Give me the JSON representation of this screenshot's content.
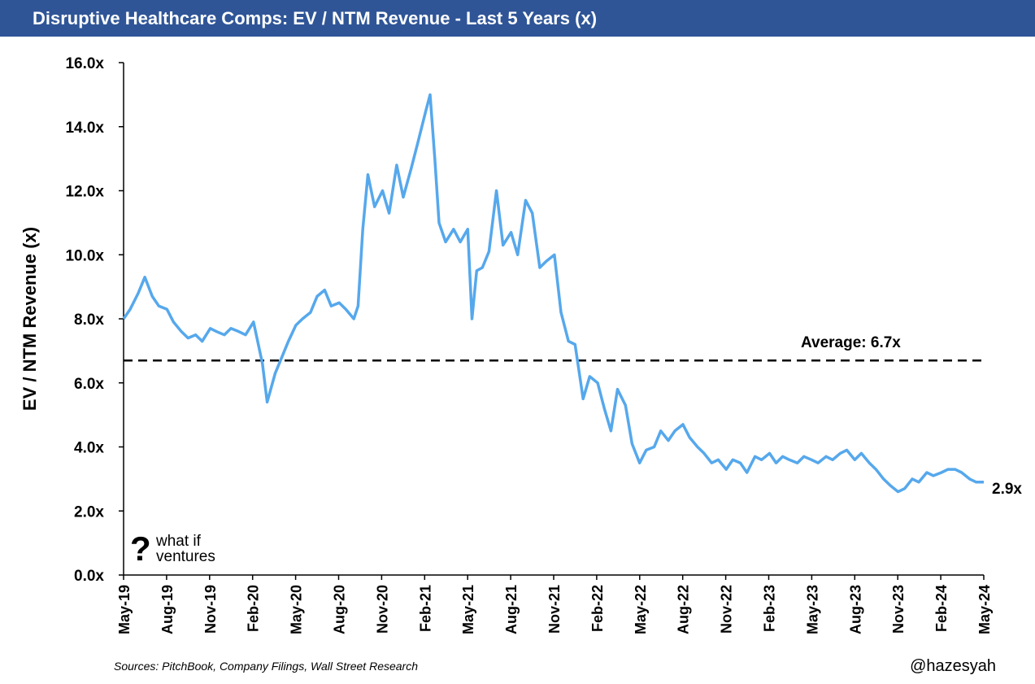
{
  "header": {
    "title": "Disruptive Healthcare Comps: EV / NTM Revenue - Last 5 Years (x)"
  },
  "footer": {
    "source": "Sources: PitchBook, Company Filings, Wall Street Research",
    "handle": "@hazesyah"
  },
  "logo": {
    "line1": "what if",
    "line2": "ventures"
  },
  "colors": {
    "header_bg": "#2f5597",
    "series_line": "#56a8ec",
    "average_line": "#000000"
  },
  "chart_data": {
    "type": "line",
    "ylabel": "EV / NTM Revenue (x)",
    "ylim": [
      0,
      16
    ],
    "yticks": [
      "0.0x",
      "2.0x",
      "4.0x",
      "6.0x",
      "8.0x",
      "10.0x",
      "12.0x",
      "14.0x",
      "16.0x"
    ],
    "xlim": [
      "2019-05-01",
      "2024-05-01"
    ],
    "xticks": [
      "May-19",
      "Aug-19",
      "Nov-19",
      "Feb-20",
      "May-20",
      "Aug-20",
      "Nov-20",
      "Feb-21",
      "May-21",
      "Aug-21",
      "Nov-21",
      "Feb-22",
      "May-22",
      "Aug-22",
      "Nov-22",
      "Feb-23",
      "May-23",
      "Aug-23",
      "Nov-23",
      "Feb-24",
      "May-24"
    ],
    "grid": false,
    "series": [
      {
        "x": [
          "2019-05-01",
          "2019-05-15",
          "2019-06-01",
          "2019-06-15",
          "2019-07-01",
          "2019-07-15",
          "2019-08-01",
          "2019-08-15",
          "2019-09-01",
          "2019-09-15",
          "2019-10-01",
          "2019-10-15",
          "2019-11-01",
          "2019-11-15",
          "2019-12-01",
          "2019-12-15",
          "2020-01-01",
          "2020-01-15",
          "2020-02-01",
          "2020-02-20",
          "2020-03-01",
          "2020-03-18",
          "2020-04-01",
          "2020-04-15",
          "2020-05-01",
          "2020-05-15",
          "2020-06-01",
          "2020-06-15",
          "2020-07-01",
          "2020-07-15",
          "2020-08-01",
          "2020-08-15",
          "2020-09-01",
          "2020-09-10",
          "2020-09-20",
          "2020-10-01",
          "2020-10-15",
          "2020-11-01",
          "2020-11-15",
          "2020-12-01",
          "2020-12-15",
          "2021-01-01",
          "2021-01-15",
          "2021-02-01",
          "2021-02-10",
          "2021-02-20",
          "2021-03-01",
          "2021-03-15",
          "2021-04-01",
          "2021-04-15",
          "2021-05-01",
          "2021-05-10",
          "2021-05-20",
          "2021-06-01",
          "2021-06-15",
          "2021-07-01",
          "2021-07-15",
          "2021-08-01",
          "2021-08-15",
          "2021-09-01",
          "2021-09-15",
          "2021-10-01",
          "2021-10-15",
          "2021-11-01",
          "2021-11-15",
          "2021-12-01",
          "2021-12-15",
          "2022-01-01",
          "2022-01-15",
          "2022-02-01",
          "2022-02-15",
          "2022-03-01",
          "2022-03-15",
          "2022-04-01",
          "2022-04-15",
          "2022-05-01",
          "2022-05-15",
          "2022-06-01",
          "2022-06-15",
          "2022-07-01",
          "2022-07-15",
          "2022-08-01",
          "2022-08-15",
          "2022-09-01",
          "2022-09-15",
          "2022-10-01",
          "2022-10-15",
          "2022-11-01",
          "2022-11-15",
          "2022-12-01",
          "2022-12-15",
          "2023-01-01",
          "2023-01-15",
          "2023-02-01",
          "2023-02-15",
          "2023-03-01",
          "2023-03-15",
          "2023-04-01",
          "2023-04-15",
          "2023-05-01",
          "2023-05-15",
          "2023-06-01",
          "2023-06-15",
          "2023-07-01",
          "2023-07-15",
          "2023-08-01",
          "2023-08-15",
          "2023-09-01",
          "2023-09-15",
          "2023-10-01",
          "2023-10-15",
          "2023-11-01",
          "2023-11-15",
          "2023-12-01",
          "2023-12-15",
          "2024-01-01",
          "2024-01-15",
          "2024-02-01",
          "2024-02-15",
          "2024-03-01",
          "2024-03-15",
          "2024-04-01",
          "2024-04-15",
          "2024-05-01"
        ],
        "values": [
          8.0,
          8.3,
          8.8,
          9.3,
          8.7,
          8.4,
          8.3,
          7.9,
          7.6,
          7.4,
          7.5,
          7.3,
          7.7,
          7.6,
          7.5,
          7.7,
          7.6,
          7.5,
          7.9,
          6.6,
          5.4,
          6.3,
          6.8,
          7.3,
          7.8,
          8.0,
          8.2,
          8.7,
          8.9,
          8.4,
          8.5,
          8.3,
          8.0,
          8.4,
          10.8,
          12.5,
          11.5,
          12.0,
          11.3,
          12.8,
          11.8,
          12.7,
          13.5,
          14.5,
          15.0,
          13.0,
          11.0,
          10.4,
          10.8,
          10.4,
          10.8,
          8.0,
          9.5,
          9.6,
          10.1,
          12.0,
          10.3,
          10.7,
          10.0,
          11.7,
          11.3,
          9.6,
          9.8,
          10.0,
          8.2,
          7.3,
          7.2,
          5.5,
          6.2,
          6.0,
          5.2,
          4.5,
          5.8,
          5.3,
          4.1,
          3.5,
          3.9,
          4.0,
          4.5,
          4.2,
          4.5,
          4.7,
          4.3,
          4.0,
          3.8,
          3.5,
          3.6,
          3.3,
          3.6,
          3.5,
          3.2,
          3.7,
          3.6,
          3.8,
          3.5,
          3.7,
          3.6,
          3.5,
          3.7,
          3.6,
          3.5,
          3.7,
          3.6,
          3.8,
          3.9,
          3.6,
          3.8,
          3.5,
          3.3,
          3.0,
          2.8,
          2.6,
          2.7,
          3.0,
          2.9,
          3.2,
          3.1,
          3.2,
          3.3,
          3.3,
          3.2,
          3.0,
          2.9,
          2.9
        ]
      }
    ],
    "reference_line": {
      "value": 6.7,
      "label": "Average: 6.7x"
    },
    "end_label": "2.9x"
  }
}
